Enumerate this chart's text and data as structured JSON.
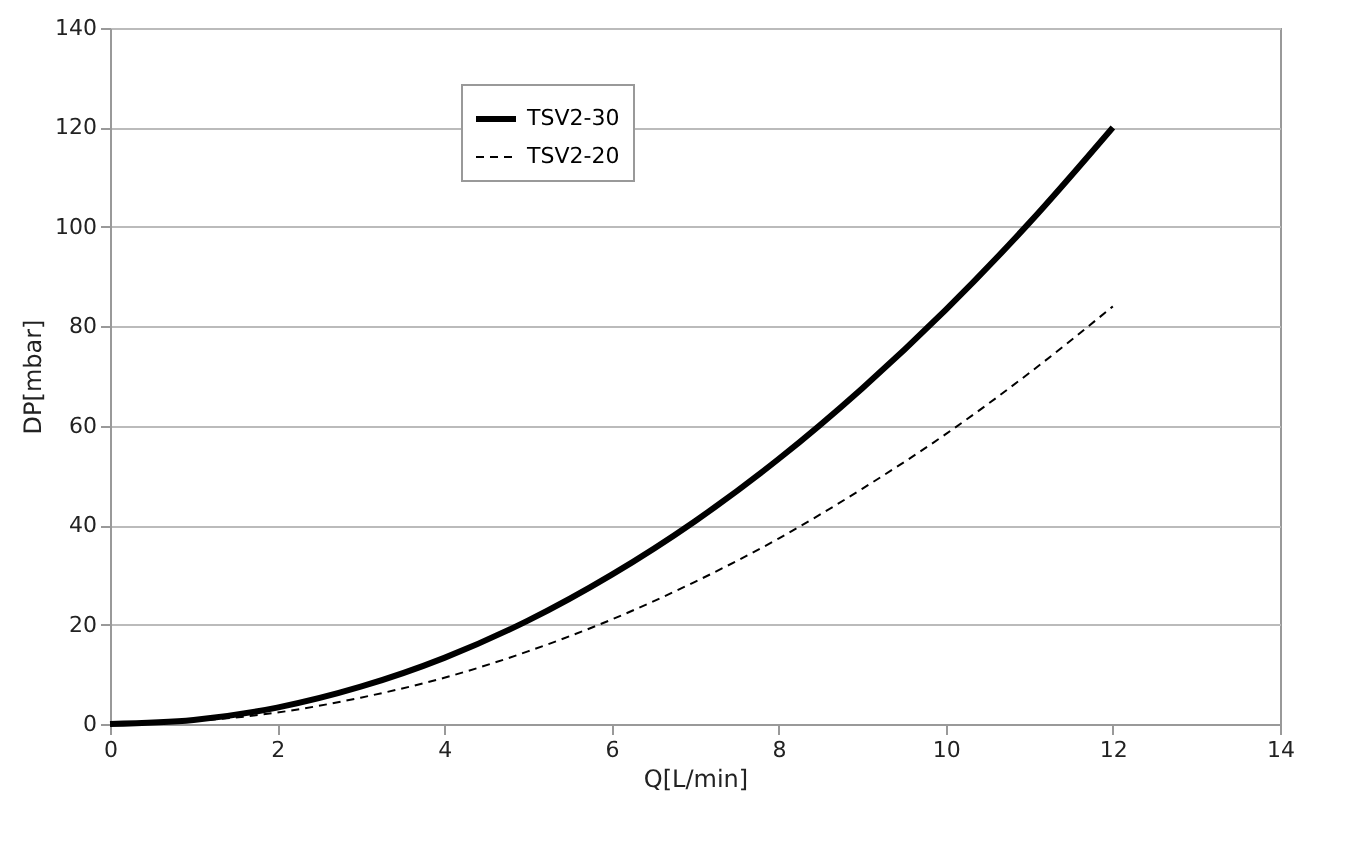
{
  "chart_data": {
    "type": "line",
    "xlabel": "Q[L/min]",
    "ylabel": "DP[mbar]",
    "x": [
      0,
      1,
      2,
      3,
      4,
      5,
      6,
      7,
      8,
      9,
      10,
      11,
      12
    ],
    "series": [
      {
        "name": "TSV2-30",
        "color": "#000000",
        "line_style": "solid",
        "values": [
          0,
          0.8,
          3.3,
          7.5,
          13.3,
          20.8,
          30,
          40.8,
          53.3,
          67.5,
          83.3,
          100.8,
          120
        ]
      },
      {
        "name": "TSV2-20",
        "color": "#000000",
        "line_style": "dashed",
        "values": [
          0,
          0.6,
          2.3,
          5.3,
          9.3,
          14.6,
          21,
          28.6,
          37.3,
          47.3,
          58.3,
          70.6,
          84
        ]
      }
    ],
    "xlim": [
      0,
      14
    ],
    "xticks": [
      0,
      2,
      4,
      6,
      8,
      10,
      12,
      14
    ],
    "ylim": [
      0,
      140
    ],
    "yticks": [
      0,
      20,
      40,
      60,
      80,
      100,
      120,
      140
    ],
    "grid": "y",
    "legend": "top",
    "marker": "none"
  }
}
